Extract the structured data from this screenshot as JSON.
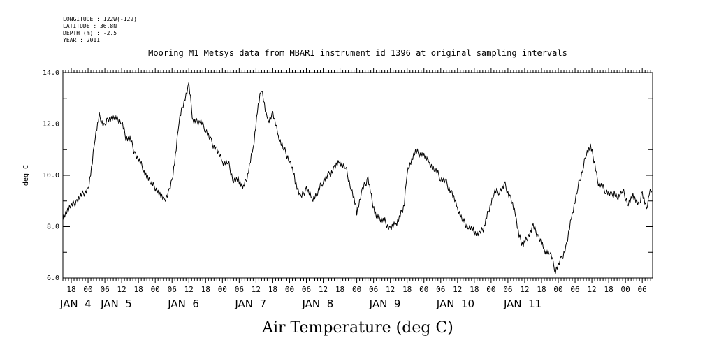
{
  "header": {
    "meta": [
      "LONGITUDE : 122W(-122)",
      "LATITUDE : 36.8N",
      "DEPTH (m) : -2.5",
      "YEAR : 2011"
    ],
    "title": "Mooring M1 Metsys data from MBARI instrument id 1396 at original sampling intervals"
  },
  "chart_data": {
    "type": "line",
    "title": "Mooring M1 Metsys data from MBARI instrument id 1396 at original sampling intervals",
    "xlabel": "Air Temperature (deg C)",
    "ylabel": "deg C",
    "ylim": [
      6.0,
      14.0
    ],
    "yticks": [
      6.0,
      8.0,
      10.0,
      12.0,
      14.0
    ],
    "ytick_labels": [
      "6.0",
      "8.0",
      "10.0",
      "12.0",
      "14.0"
    ],
    "x_range_hours_from_jan3_00": [
      27.0,
      237.7
    ],
    "hour_ticks": [
      "18",
      "00",
      "06",
      "12",
      "18",
      "00",
      "06",
      "12",
      "18",
      "00",
      "06",
      "12",
      "18",
      "00",
      "06",
      "12",
      "18",
      "00",
      "06",
      "12",
      "18",
      "00",
      "06",
      "12",
      "18",
      "00",
      "06",
      "12",
      "18",
      "00",
      "06",
      "12",
      "18",
      "00",
      "06",
      "12"
    ],
    "day_labels": [
      "JAN 4",
      "JAN 5",
      "JAN 6",
      "JAN 7",
      "JAN 8",
      "JAN 9",
      "JAN 10",
      "JAN 11"
    ],
    "grid": false,
    "legend": "none",
    "line_color": "#000000",
    "series": [
      {
        "x": [
          27,
          30,
          32,
          36,
          37.5,
          38.5,
          40,
          42,
          43,
          46,
          48,
          49.5,
          51,
          53,
          56,
          58.5,
          60,
          63,
          65,
          66,
          67.5,
          68.5,
          70,
          72,
          73.5,
          75,
          76,
          78,
          80,
          82,
          84,
          86,
          88,
          90,
          91.5,
          93,
          95,
          96.5,
          98,
          100,
          102,
          104,
          106,
          108,
          110,
          112,
          114,
          116,
          118,
          120,
          122,
          124,
          126,
          128,
          130,
          132,
          134,
          136,
          137.5,
          139,
          140.5,
          142,
          144,
          146,
          147.5,
          149,
          150,
          153,
          156,
          158,
          160,
          162,
          164,
          166,
          168,
          170,
          172,
          174,
          176,
          177.5,
          179,
          181,
          183,
          185,
          187,
          189,
          190,
          191.5,
          193,
          195,
          197,
          199,
          201,
          203,
          205,
          207,
          209,
          211,
          213,
          214,
          215.5,
          217,
          218,
          219,
          221,
          223,
          224,
          225,
          227,
          229,
          231,
          233,
          234,
          235.5,
          236.5,
          237.5
        ],
        "y": [
          8.4,
          8.8,
          9.0,
          9.5,
          10.5,
          11.5,
          12.3,
          11.9,
          12.2,
          12.2,
          12.1,
          11.5,
          11.4,
          10.8,
          10.2,
          9.7,
          9.5,
          9.0,
          9.4,
          9.8,
          11.0,
          12.1,
          12.8,
          13.5,
          12.1,
          12.1,
          12.1,
          11.8,
          11.3,
          11.0,
          10.5,
          10.5,
          9.8,
          9.8,
          9.5,
          10.0,
          11.1,
          12.5,
          13.4,
          12.1,
          12.4,
          11.5,
          11.0,
          10.6,
          9.8,
          9.1,
          9.5,
          9.1,
          9.3,
          9.8,
          10.0,
          10.3,
          10.5,
          10.3,
          9.5,
          8.6,
          9.4,
          9.9,
          9.0,
          8.4,
          8.3,
          8.2,
          7.9,
          8.1,
          8.4,
          8.9,
          10.2,
          10.9,
          10.8,
          10.5,
          10.2,
          9.9,
          9.7,
          9.3,
          8.7,
          8.2,
          8.0,
          7.8,
          7.7,
          8.0,
          8.6,
          9.3,
          9.4,
          9.6,
          9.1,
          8.3,
          7.6,
          7.3,
          7.6,
          8.0,
          7.6,
          7.1,
          7.0,
          6.3,
          6.7,
          7.3,
          8.5,
          9.5,
          10.4,
          10.9,
          11.1,
          10.5,
          9.8,
          9.6,
          9.4,
          9.2,
          9.3,
          9.1,
          9.4,
          8.9,
          9.2,
          8.8,
          9.3,
          8.7,
          9.3,
          9.4
        ]
      }
    ]
  }
}
